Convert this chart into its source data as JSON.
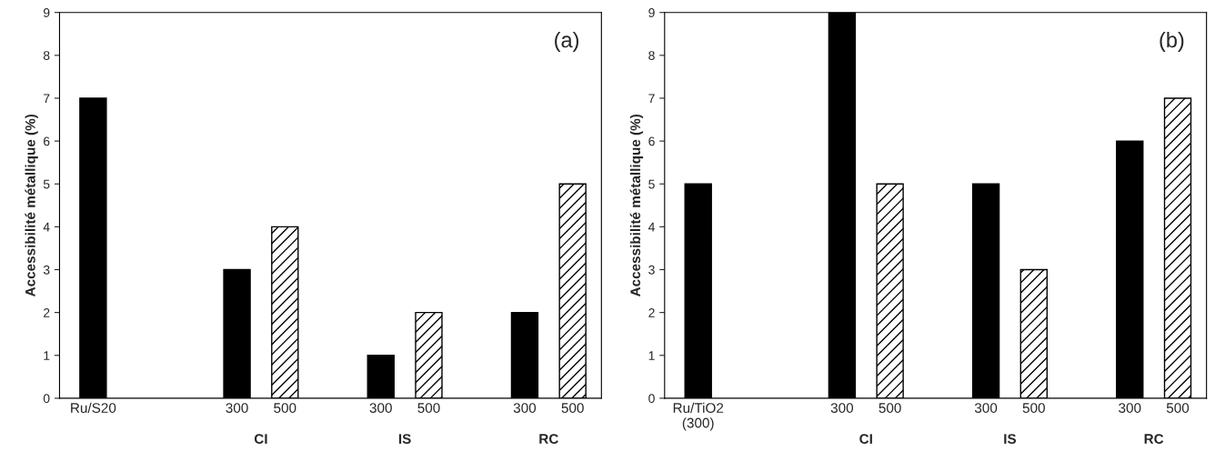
{
  "chart_data": [
    {
      "type": "bar",
      "ylabel": "Accessibilité métallique (%)",
      "categories": [
        "Ru/S20",
        null,
        null,
        "300",
        "500",
        null,
        "300",
        "500",
        null,
        "300",
        "500"
      ],
      "series": [
        {
          "color": "#000000",
          "values": [
            7,
            null,
            null,
            3,
            null,
            null,
            1,
            null,
            null,
            2,
            null
          ]
        },
        {
          "color": "#000000",
          "values": [
            null,
            null,
            null,
            null,
            4,
            null,
            null,
            2,
            null,
            null,
            5
          ]
        }
      ],
      "ylim": [
        0,
        9
      ],
      "yticks": [
        0,
        1,
        2,
        3,
        4,
        5,
        6,
        7,
        8,
        9
      ],
      "grid": false,
      "legend": false,
      "annotations": [
        "(a)",
        "CI",
        "IS",
        "RC"
      ]
    },
    {
      "type": "bar",
      "ylabel": "Accessibilité métallique (%)",
      "categories": [
        "Ru/TiO2\n(300)",
        null,
        null,
        "300",
        "500",
        null,
        "300",
        "500",
        null,
        "300",
        "500"
      ],
      "series": [
        {
          "color": "#000000",
          "values": [
            5,
            null,
            null,
            9,
            null,
            null,
            5,
            null,
            null,
            6,
            null
          ]
        },
        {
          "color": "#000000",
          "values": [
            null,
            null,
            null,
            null,
            5,
            null,
            null,
            3,
            null,
            null,
            7
          ]
        }
      ],
      "ylim": [
        0,
        9
      ],
      "yticks": [
        0,
        1,
        2,
        3,
        4,
        5,
        6,
        7,
        8,
        9
      ],
      "grid": false,
      "legend": false,
      "annotations": [
        "(b)",
        "CI",
        "IS",
        "RC"
      ]
    }
  ]
}
